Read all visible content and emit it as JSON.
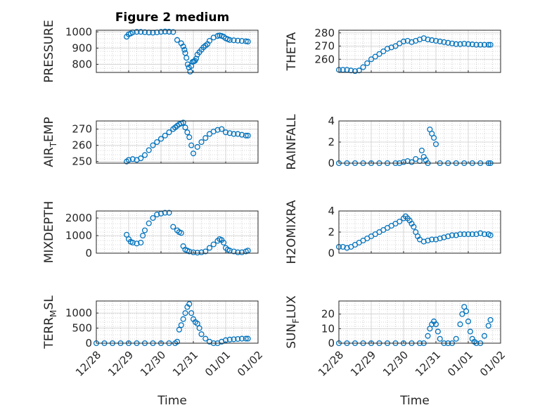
{
  "figure": {
    "title": "Figure 2 medium",
    "marker_color": "#0072BD",
    "axis_color": "#262626",
    "grid_color": "#b0b0b0",
    "xlabel": "Time",
    "xticks": [
      "12/28",
      "12/29",
      "12/30",
      "12/31",
      "01/01",
      "01/02"
    ]
  },
  "chart_data": [
    {
      "type": "scatter",
      "ylabel": "PRESSURE",
      "yticks": [
        800,
        900,
        1000
      ],
      "ylim": [
        750,
        1010
      ],
      "x": [
        0.75,
        0.8,
        0.85,
        0.9,
        1.0,
        1.1,
        1.2,
        1.3,
        1.4,
        1.5,
        1.6,
        1.7,
        1.8,
        1.9,
        2.0,
        2.1,
        2.15,
        2.18,
        2.2,
        2.23,
        2.26,
        2.29,
        2.32,
        2.35,
        2.38,
        2.41,
        2.44,
        2.47,
        2.5,
        2.55,
        2.6,
        2.65,
        2.7,
        2.75,
        2.8,
        2.9,
        3.0,
        3.05,
        3.1,
        3.15,
        3.2,
        3.25,
        3.3,
        3.4,
        3.5,
        3.6,
        3.7,
        3.75
      ],
      "y": [
        970,
        985,
        990,
        997,
        1000,
        1000,
        998,
        996,
        995,
        997,
        1000,
        1002,
        1001,
        999,
        950,
        930,
        910,
        890,
        870,
        840,
        800,
        780,
        755,
        790,
        815,
        818,
        822,
        835,
        860,
        875,
        890,
        905,
        915,
        925,
        945,
        965,
        975,
        978,
        975,
        970,
        960,
        955,
        950,
        948,
        946,
        944,
        942,
        940
      ]
    },
    {
      "type": "scatter",
      "ylabel": "THETA",
      "yticks": [
        260,
        270,
        280
      ],
      "ylim": [
        250,
        282
      ],
      "x": [
        0.0,
        0.1,
        0.2,
        0.3,
        0.4,
        0.5,
        0.6,
        0.7,
        0.8,
        0.9,
        1.0,
        1.1,
        1.2,
        1.3,
        1.4,
        1.5,
        1.6,
        1.7,
        1.8,
        1.9,
        2.0,
        2.1,
        2.2,
        2.3,
        2.4,
        2.5,
        2.6,
        2.7,
        2.8,
        2.9,
        3.0,
        3.1,
        3.2,
        3.3,
        3.4,
        3.5,
        3.6,
        3.7,
        3.75
      ],
      "y": [
        252,
        252,
        252,
        251.5,
        251,
        251.5,
        254,
        257,
        260,
        262,
        264,
        266,
        268,
        269,
        270,
        272,
        273.5,
        274,
        273,
        274,
        275,
        276,
        275,
        274.5,
        274,
        273.5,
        273,
        272.5,
        272,
        271.5,
        271.5,
        271.8,
        271.5,
        271.3,
        271,
        271,
        271,
        271,
        271
      ]
    },
    {
      "type": "scatter",
      "ylabel": "AIR",
      "ylabel_sub": "T",
      "ylabel_tail": "EMP",
      "yticks": [
        250,
        260,
        270
      ],
      "ylim": [
        249,
        275
      ],
      "x": [
        0.75,
        0.8,
        0.9,
        1.0,
        1.1,
        1.2,
        1.3,
        1.4,
        1.5,
        1.6,
        1.7,
        1.8,
        1.9,
        1.95,
        2.0,
        2.05,
        2.1,
        2.15,
        2.2,
        2.25,
        2.3,
        2.35,
        2.4,
        2.5,
        2.6,
        2.7,
        2.8,
        2.9,
        3.0,
        3.1,
        3.2,
        3.3,
        3.4,
        3.5,
        3.6,
        3.7,
        3.75
      ],
      "y": [
        250,
        251,
        251.5,
        251,
        252,
        254,
        257,
        260,
        262,
        264,
        266,
        268,
        270,
        271,
        272,
        273,
        273.5,
        274,
        271,
        268,
        265,
        260,
        255,
        259,
        262,
        264.5,
        267,
        268.5,
        269.5,
        270,
        268,
        267.5,
        267,
        267,
        266.5,
        266,
        266
      ]
    },
    {
      "type": "scatter",
      "ylabel": "RAINFALL",
      "yticks": [
        0,
        2,
        4
      ],
      "ylim": [
        0,
        4
      ],
      "x": [
        0.0,
        0.2,
        0.4,
        0.6,
        0.8,
        1.0,
        1.2,
        1.4,
        1.5,
        1.6,
        1.7,
        1.8,
        1.9,
        2.0,
        2.05,
        2.1,
        2.15,
        2.2,
        2.25,
        2.3,
        2.35,
        2.4,
        2.5,
        2.7,
        2.9,
        3.1,
        3.3,
        3.5,
        3.7,
        3.75
      ],
      "y": [
        0,
        0,
        0,
        0,
        0,
        0,
        0,
        0,
        0,
        0.1,
        0.2,
        0.1,
        0.4,
        0.2,
        1.2,
        0.6,
        0.3,
        0,
        3.2,
        2.8,
        2.4,
        1.8,
        0,
        0,
        0,
        0,
        0,
        0,
        0,
        0
      ]
    },
    {
      "type": "scatter",
      "ylabel": "MIXDEPTH",
      "yticks": [
        0,
        1000,
        2000
      ],
      "ylim": [
        0,
        2400
      ],
      "x": [
        0.75,
        0.8,
        0.85,
        0.9,
        1.0,
        1.1,
        1.15,
        1.2,
        1.3,
        1.4,
        1.5,
        1.6,
        1.7,
        1.8,
        1.9,
        2.0,
        2.05,
        2.1,
        2.15,
        2.2,
        2.25,
        2.3,
        2.4,
        2.5,
        2.6,
        2.7,
        2.8,
        2.9,
        3.0,
        3.05,
        3.1,
        3.15,
        3.2,
        3.25,
        3.3,
        3.4,
        3.5,
        3.6,
        3.7,
        3.75
      ],
      "y": [
        1050,
        800,
        650,
        600,
        550,
        600,
        1000,
        1300,
        1700,
        2000,
        2200,
        2250,
        2300,
        2300,
        1500,
        1300,
        1200,
        1150,
        400,
        200,
        150,
        100,
        50,
        30,
        50,
        100,
        300,
        500,
        700,
        800,
        750,
        600,
        300,
        200,
        150,
        100,
        50,
        50,
        100,
        150
      ]
    },
    {
      "type": "scatter",
      "ylabel": "H2OMIXRA",
      "yticks": [
        0,
        2,
        4
      ],
      "ylim": [
        0,
        4
      ],
      "x": [
        0.0,
        0.1,
        0.2,
        0.3,
        0.4,
        0.5,
        0.6,
        0.7,
        0.8,
        0.9,
        1.0,
        1.1,
        1.2,
        1.3,
        1.4,
        1.5,
        1.6,
        1.65,
        1.7,
        1.75,
        1.8,
        1.85,
        1.9,
        1.95,
        2.0,
        2.1,
        2.2,
        2.3,
        2.4,
        2.5,
        2.6,
        2.7,
        2.8,
        2.9,
        3.0,
        3.1,
        3.2,
        3.3,
        3.4,
        3.5,
        3.6,
        3.7,
        3.75
      ],
      "y": [
        0.6,
        0.6,
        0.5,
        0.6,
        0.8,
        1.0,
        1.2,
        1.4,
        1.6,
        1.8,
        2.0,
        2.2,
        2.4,
        2.6,
        2.8,
        3.0,
        3.3,
        3.5,
        3.3,
        3.1,
        2.8,
        2.5,
        2.0,
        1.6,
        1.3,
        1.1,
        1.2,
        1.3,
        1.3,
        1.4,
        1.5,
        1.6,
        1.7,
        1.7,
        1.8,
        1.8,
        1.8,
        1.8,
        1.8,
        1.9,
        1.8,
        1.8,
        1.7
      ]
    },
    {
      "type": "scatter",
      "ylabel": "TERR",
      "ylabel_sub": "M",
      "ylabel_tail": "SL",
      "yticks": [
        0,
        500,
        1000
      ],
      "ylim": [
        0,
        1400
      ],
      "x": [
        0.0,
        0.2,
        0.4,
        0.6,
        0.8,
        1.0,
        1.2,
        1.4,
        1.6,
        1.8,
        1.95,
        2.0,
        2.05,
        2.1,
        2.15,
        2.2,
        2.25,
        2.3,
        2.35,
        2.4,
        2.45,
        2.5,
        2.55,
        2.6,
        2.7,
        2.8,
        2.9,
        3.0,
        3.1,
        3.2,
        3.3,
        3.4,
        3.5,
        3.6,
        3.7,
        3.75
      ],
      "y": [
        0,
        0,
        0,
        0,
        0,
        0,
        0,
        0,
        0,
        0,
        0,
        50,
        450,
        600,
        800,
        1000,
        1200,
        1300,
        1000,
        800,
        700,
        650,
        500,
        300,
        150,
        50,
        0,
        0,
        50,
        100,
        120,
        130,
        140,
        150,
        150,
        150
      ]
    },
    {
      "type": "scatter",
      "ylabel": "SUN",
      "ylabel_sub": "F",
      "ylabel_tail": "LUX",
      "yticks": [
        0,
        10,
        20
      ],
      "ylim": [
        0,
        29
      ],
      "x": [
        0.0,
        0.2,
        0.4,
        0.6,
        0.8,
        1.0,
        1.2,
        1.4,
        1.6,
        1.8,
        2.0,
        2.1,
        2.2,
        2.25,
        2.3,
        2.35,
        2.4,
        2.45,
        2.5,
        2.6,
        2.7,
        2.8,
        2.9,
        3.0,
        3.05,
        3.1,
        3.15,
        3.2,
        3.25,
        3.3,
        3.35,
        3.4,
        3.5,
        3.6,
        3.7,
        3.75
      ],
      "y": [
        0,
        0,
        0,
        0,
        0,
        0,
        0,
        0,
        0,
        0,
        0,
        0,
        5,
        10,
        13,
        15,
        13,
        8,
        3,
        0,
        0,
        0,
        3,
        13,
        20,
        25,
        22,
        15,
        8,
        3,
        1,
        0,
        0,
        5,
        12,
        16
      ]
    }
  ]
}
